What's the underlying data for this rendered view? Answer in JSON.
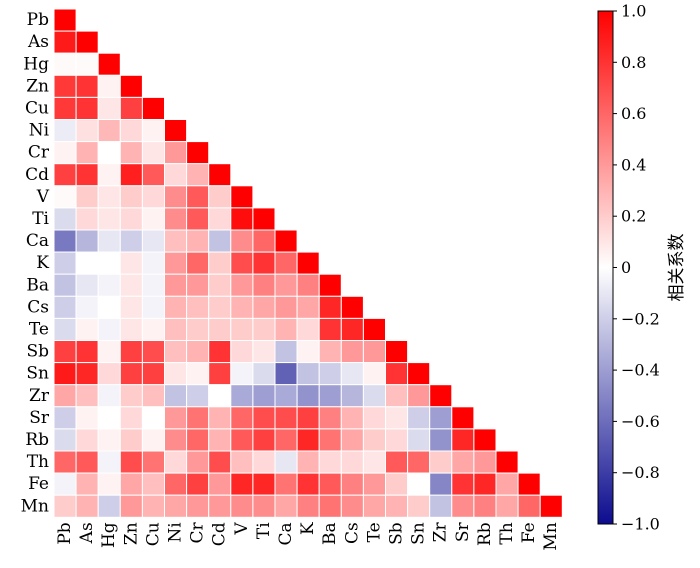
{
  "chart_data": {
    "type": "heatmap",
    "variables": [
      "Pb",
      "As",
      "Hg",
      "Zn",
      "Cu",
      "Ni",
      "Cr",
      "Cd",
      "V",
      "Ti",
      "Ca",
      "K",
      "Ba",
      "Cs",
      "Te",
      "Sb",
      "Sn",
      "Zr",
      "Sr",
      "Rb",
      "Th",
      "Fe",
      "Mn"
    ],
    "matrix": [
      [
        1.0
      ],
      [
        0.9,
        1.0
      ],
      [
        0.02,
        0.02,
        1.0
      ],
      [
        0.78,
        0.8,
        0.05,
        1.0
      ],
      [
        0.78,
        0.8,
        0.1,
        0.75,
        1.0
      ],
      [
        -0.08,
        0.12,
        0.28,
        0.15,
        0.05,
        1.0
      ],
      [
        0.05,
        0.3,
        0.0,
        0.3,
        0.1,
        0.4,
        1.0
      ],
      [
        0.75,
        0.8,
        0.05,
        0.88,
        0.65,
        0.15,
        0.3,
        1.0
      ],
      [
        0.02,
        0.2,
        0.1,
        0.2,
        0.15,
        0.45,
        0.65,
        0.2,
        1.0
      ],
      [
        -0.15,
        0.15,
        0.1,
        0.15,
        0.05,
        0.45,
        0.65,
        0.15,
        0.95,
        1.0
      ],
      [
        -0.55,
        -0.3,
        -0.1,
        -0.2,
        -0.1,
        0.25,
        0.3,
        -0.25,
        0.45,
        0.6,
        1.0
      ],
      [
        -0.2,
        0.0,
        0.0,
        0.1,
        -0.05,
        0.4,
        0.6,
        0.2,
        0.7,
        0.8,
        0.6,
        1.0
      ],
      [
        -0.25,
        -0.1,
        -0.05,
        0.1,
        -0.05,
        0.4,
        0.4,
        0.2,
        0.4,
        0.5,
        0.4,
        0.5,
        1.0
      ],
      [
        -0.2,
        -0.05,
        0.0,
        0.1,
        -0.05,
        0.3,
        0.25,
        0.2,
        0.3,
        0.35,
        0.4,
        0.35,
        0.85,
        1.0
      ],
      [
        -0.15,
        0.05,
        -0.05,
        0.1,
        0.05,
        0.25,
        0.2,
        0.2,
        0.2,
        0.2,
        0.3,
        0.15,
        0.8,
        0.85,
        1.0
      ],
      [
        0.75,
        0.8,
        0.05,
        0.75,
        0.7,
        0.25,
        0.3,
        0.8,
        0.15,
        0.1,
        -0.25,
        0.05,
        0.3,
        0.4,
        0.4,
        1.0
      ],
      [
        0.9,
        0.85,
        0.15,
        0.75,
        0.75,
        0.1,
        0.05,
        0.75,
        -0.05,
        -0.15,
        -0.65,
        -0.25,
        -0.2,
        -0.1,
        0.05,
        0.8,
        1.0
      ],
      [
        0.35,
        0.25,
        -0.05,
        0.2,
        0.25,
        -0.25,
        -0.2,
        0.0,
        -0.35,
        -0.4,
        -0.35,
        -0.45,
        -0.4,
        -0.3,
        -0.15,
        0.25,
        0.4,
        1.0
      ],
      [
        -0.2,
        0.05,
        0.0,
        0.15,
        0.0,
        0.4,
        0.55,
        0.3,
        0.6,
        0.7,
        0.7,
        0.75,
        0.5,
        0.3,
        0.15,
        0.1,
        -0.2,
        -0.4,
        1.0
      ],
      [
        -0.15,
        0.15,
        0.05,
        0.2,
        0.05,
        0.45,
        0.6,
        0.3,
        0.65,
        0.75,
        0.6,
        0.85,
        0.55,
        0.35,
        0.2,
        0.15,
        -0.15,
        -0.45,
        0.85,
        1.0
      ],
      [
        0.6,
        0.65,
        -0.05,
        0.7,
        0.55,
        0.15,
        0.4,
        0.7,
        0.25,
        0.15,
        -0.1,
        0.3,
        0.15,
        0.15,
        0.1,
        0.65,
        0.6,
        0.2,
        0.35,
        0.4,
        1.0
      ],
      [
        -0.05,
        0.3,
        0.05,
        0.35,
        0.25,
        0.6,
        0.75,
        0.4,
        0.85,
        0.85,
        0.55,
        0.8,
        0.65,
        0.5,
        0.4,
        0.2,
        0.0,
        -0.5,
        0.8,
        0.85,
        0.35,
        1.0
      ],
      [
        0.2,
        0.3,
        -0.2,
        0.4,
        0.3,
        0.35,
        0.4,
        0.4,
        0.45,
        0.45,
        0.35,
        0.5,
        0.55,
        0.45,
        0.35,
        0.3,
        0.2,
        -0.25,
        0.45,
        0.5,
        0.35,
        0.6,
        1.0
      ]
    ],
    "colorbar": {
      "label": "相关系数",
      "ticks": [
        "1.0",
        "0.8",
        "0.6",
        "0.4",
        "0.2",
        "0",
        "−0.2",
        "−0.4",
        "−0.6",
        "−0.8",
        "−1.0"
      ],
      "range": [
        -1,
        1
      ],
      "colors": {
        "negative": "#0c0c8f",
        "zero": "#ffffff",
        "positive": "#ff0000"
      }
    }
  }
}
